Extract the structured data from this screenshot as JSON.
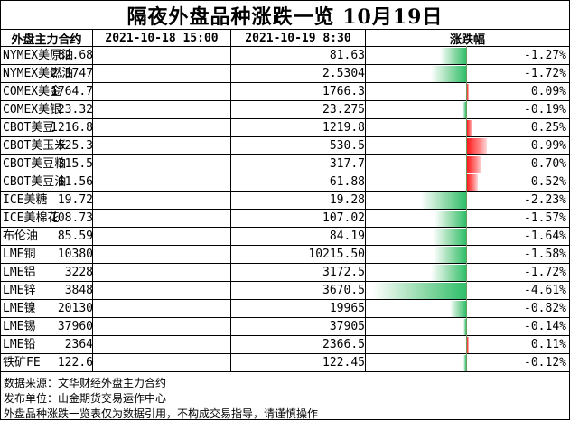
{
  "title": "隔夜外盘品种涨跌一览 10月19日",
  "headers": {
    "name": "外盘主力合约",
    "date1": "2021-10-18 15:00",
    "date2": "2021-10-19 8:30",
    "change": "涨跌幅"
  },
  "rows": [
    {
      "name": "NYMEX美原油",
      "v1": "82.68",
      "v2": "81.63",
      "pct": "-1.27%",
      "change": -1.27
    },
    {
      "name": "NYMEX美燃油",
      "v1": "2.5747",
      "v2": "2.5304",
      "pct": "-1.72%",
      "change": -1.72
    },
    {
      "name": "COMEX美金",
      "v1": "1764.7",
      "v2": "1766.3",
      "pct": "0.09%",
      "change": 0.09
    },
    {
      "name": "COMEX美银",
      "v1": "23.32",
      "v2": "23.275",
      "pct": "-0.19%",
      "change": -0.19
    },
    {
      "name": "CBOT美豆",
      "v1": "1216.8",
      "v2": "1219.8",
      "pct": "0.25%",
      "change": 0.25
    },
    {
      "name": "CBOT美玉米",
      "v1": "525.3",
      "v2": "530.5",
      "pct": "0.99%",
      "change": 0.99
    },
    {
      "name": "CBOT美豆粕",
      "v1": "315.5",
      "v2": "317.7",
      "pct": "0.70%",
      "change": 0.7
    },
    {
      "name": "CBOT美豆油",
      "v1": "61.56",
      "v2": "61.88",
      "pct": "0.52%",
      "change": 0.52
    },
    {
      "name": "ICE美糖",
      "v1": "19.72",
      "v2": "19.28",
      "pct": "-2.23%",
      "change": -2.23
    },
    {
      "name": "ICE美棉花",
      "v1": "108.73",
      "v2": "107.02",
      "pct": "-1.57%",
      "change": -1.57
    },
    {
      "name": "布伦油",
      "v1": "85.59",
      "v2": "84.19",
      "pct": "-1.64%",
      "change": -1.64
    },
    {
      "name": "LME铜",
      "v1": "10380",
      "v2": "10215.50",
      "pct": "-1.58%",
      "change": -1.58
    },
    {
      "name": "LME铝",
      "v1": "3228",
      "v2": "3172.5",
      "pct": "-1.72%",
      "change": -1.72
    },
    {
      "name": "LME锌",
      "v1": "3848",
      "v2": "3670.5",
      "pct": "-4.61%",
      "change": -4.61
    },
    {
      "name": "LME镍",
      "v1": "20130",
      "v2": "19965",
      "pct": "-0.82%",
      "change": -0.82
    },
    {
      "name": "LME锡",
      "v1": "37960",
      "v2": "37905",
      "pct": "-0.14%",
      "change": -0.14
    },
    {
      "name": "LME铅",
      "v1": "2364",
      "v2": "2366.5",
      "pct": "0.11%",
      "change": 0.11
    },
    {
      "name": "铁矿FE",
      "v1": "122.6",
      "v2": "122.45",
      "pct": "-0.12%",
      "change": -0.12
    }
  ],
  "footer": [
    "数据来源：文华财经外盘主力合约",
    "发布单位：山金期货交易运作中心",
    "外盘品种涨跌一览表仅为数据引用，不构成交易指导，请谨慎操作"
  ],
  "colors": {
    "up": "#ff1a1a",
    "down": "#2fbf6a"
  }
}
